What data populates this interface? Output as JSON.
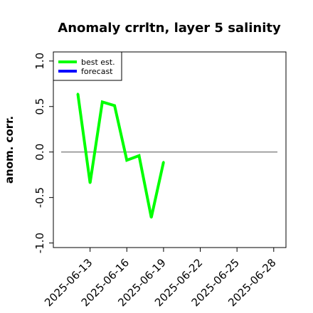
{
  "chart_data": {
    "type": "line",
    "title": "Anomaly crrltn, layer 5 salinity",
    "ylabel": "anom. corr.",
    "xlabel": "",
    "ylim": [
      -1.05,
      1.1
    ],
    "xlim": [
      "2025-06-10",
      "2025-06-29"
    ],
    "yticks": [
      -1.0,
      -0.5,
      0.0,
      0.5,
      1.0
    ],
    "ytick_labels": [
      "-1.0",
      "-0.5",
      "0.0",
      "0.5",
      "1.0"
    ],
    "xticks": [
      "2025-06-13",
      "2025-06-16",
      "2025-06-19",
      "2025-06-22",
      "2025-06-25",
      "2025-06-28"
    ],
    "highlight_tick": "2025-06-19",
    "highlight_color": "#228b22",
    "reference_line": 0.0,
    "grid": false,
    "legend_position": "top-left",
    "series": [
      {
        "name": "best est.",
        "color": "#00ff00",
        "x": [
          "2025-06-12",
          "2025-06-13",
          "2025-06-14",
          "2025-06-15",
          "2025-06-16",
          "2025-06-17",
          "2025-06-18",
          "2025-06-19"
        ],
        "y": [
          0.64,
          -0.34,
          0.55,
          0.51,
          -0.09,
          -0.04,
          -0.72,
          -0.11
        ]
      },
      {
        "name": "forecast",
        "color": "#0000ff",
        "x": [],
        "y": []
      }
    ]
  }
}
